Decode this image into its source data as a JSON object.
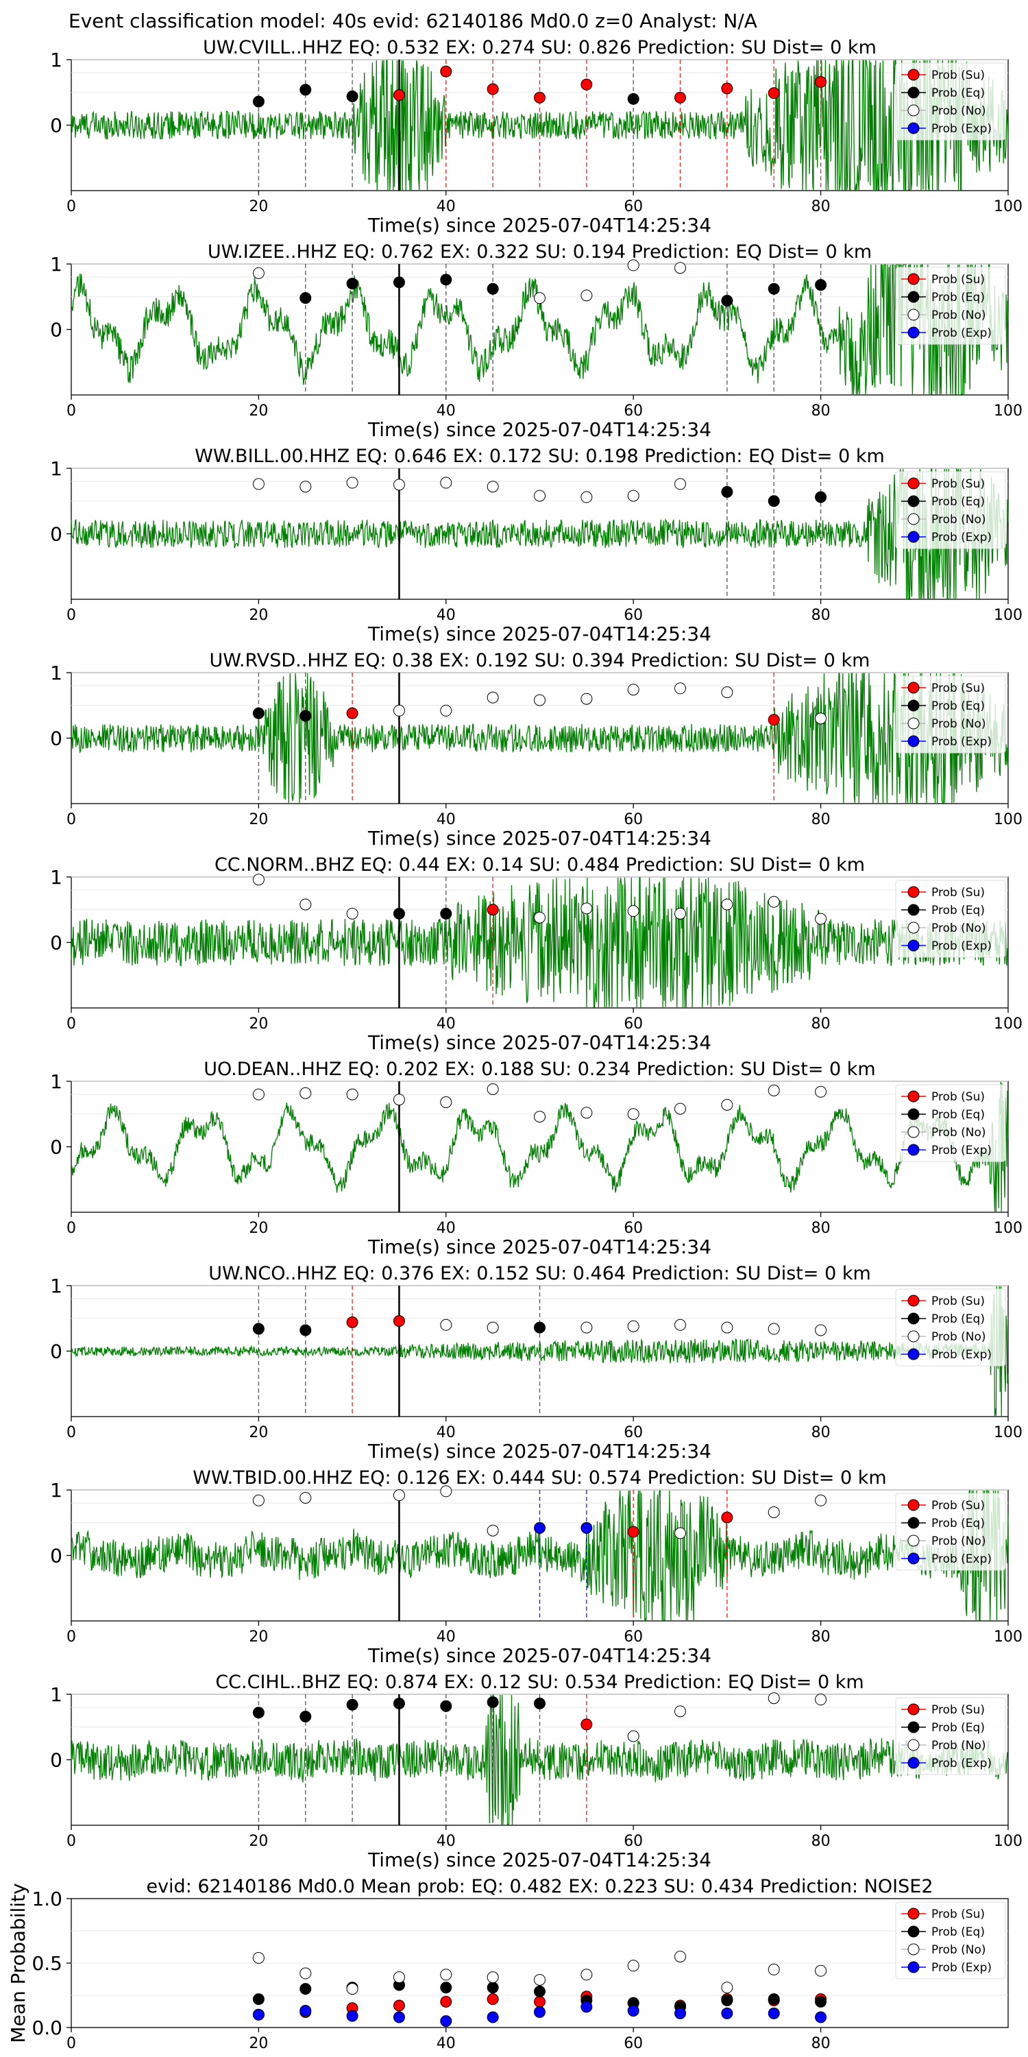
{
  "figure": {
    "title": "Event classification model: 40s evid: 62140186 Md0.0 z=0 Analyst: N/A"
  },
  "legend_labels": [
    "Prob (Su)",
    "Prob (Eq)",
    "Prob (No)",
    "Prob (Exp)"
  ],
  "colors": {
    "su": "#ff0000",
    "eq": "#000000",
    "no": "#ffffff",
    "exp": "#0000ff",
    "trace": "#008000",
    "event_line": "#000000"
  },
  "chart_data": [
    {
      "type": "line",
      "title": "UW.CVILL..HHZ   EQ: 0.532  EX: 0.274  SU: 0.826   Prediction: SU    Dist= 0 km",
      "xlabel": "Time(s) since 2025-07-04T14:25:34",
      "xlim": [
        0,
        100
      ],
      "ylim": [
        -1,
        1
      ],
      "xticks": [
        "0",
        "20",
        "40",
        "60",
        "80",
        "100"
      ],
      "yticks": [
        "1",
        "0"
      ],
      "event_time": 35,
      "noise_level": 0.12,
      "burst": [
        [
          30,
          40,
          0.5
        ],
        [
          72,
          100,
          0.6
        ]
      ],
      "waves": 0,
      "series": [
        {
          "name": "Prob (Su)",
          "x": [
            35,
            40,
            45,
            50,
            55,
            65,
            70,
            75,
            80
          ],
          "y": [
            0.46,
            0.82,
            0.55,
            0.42,
            0.62,
            0.42,
            0.56,
            0.49,
            0.66
          ]
        },
        {
          "name": "Prob (Eq)",
          "x": [
            20,
            25,
            30,
            60
          ],
          "y": [
            0.36,
            0.54,
            0.44,
            0.4
          ]
        },
        {
          "name": "Prob (No)",
          "x": [],
          "y": []
        },
        {
          "name": "Prob (Exp)",
          "x": [],
          "y": []
        }
      ]
    },
    {
      "type": "line",
      "title": "UW.IZEE..HHZ   EQ: 0.762  EX: 0.322  SU: 0.194   Prediction: EQ    Dist= 0 km",
      "xlabel": "Time(s) since 2025-07-04T14:25:34",
      "xlim": [
        0,
        100
      ],
      "ylim": [
        -1,
        1
      ],
      "xticks": [
        "0",
        "20",
        "40",
        "60",
        "80",
        "100"
      ],
      "yticks": [
        "1",
        "0"
      ],
      "event_time": 35,
      "noise_level": 0.12,
      "burst": [
        [
          82,
          100,
          0.6
        ]
      ],
      "waves": 0.5,
      "series": [
        {
          "name": "Prob (Su)",
          "x": [],
          "y": []
        },
        {
          "name": "Prob (Eq)",
          "x": [
            25,
            30,
            35,
            40,
            45,
            70,
            75,
            80
          ],
          "y": [
            0.48,
            0.7,
            0.72,
            0.76,
            0.62,
            0.44,
            0.62,
            0.68
          ]
        },
        {
          "name": "Prob (No)",
          "x": [
            20,
            50,
            55,
            60,
            65
          ],
          "y": [
            0.86,
            0.48,
            0.52,
            0.98,
            0.94
          ]
        },
        {
          "name": "Prob (Exp)",
          "x": [],
          "y": []
        }
      ]
    },
    {
      "type": "line",
      "title": "WW.BILL.00.HHZ   EQ: 0.646  EX: 0.172  SU: 0.198   Prediction: EQ    Dist= 0 km",
      "xlabel": "Time(s) since 2025-07-04T14:25:34",
      "xlim": [
        0,
        100
      ],
      "ylim": [
        -1,
        1
      ],
      "xticks": [
        "0",
        "20",
        "40",
        "60",
        "80",
        "100"
      ],
      "yticks": [
        "1",
        "0"
      ],
      "event_time": 35,
      "noise_level": 0.12,
      "burst": [
        [
          85,
          100,
          0.55
        ]
      ],
      "waves": 0,
      "series": [
        {
          "name": "Prob (Su)",
          "x": [],
          "y": []
        },
        {
          "name": "Prob (Eq)",
          "x": [
            70,
            75,
            80
          ],
          "y": [
            0.64,
            0.5,
            0.56
          ]
        },
        {
          "name": "Prob (No)",
          "x": [
            20,
            25,
            30,
            35,
            40,
            45,
            50,
            55,
            60,
            65
          ],
          "y": [
            0.76,
            0.72,
            0.78,
            0.75,
            0.78,
            0.72,
            0.58,
            0.56,
            0.58,
            0.76
          ]
        },
        {
          "name": "Prob (Exp)",
          "x": [],
          "y": []
        }
      ]
    },
    {
      "type": "line",
      "title": "UW.RVSD..HHZ   EQ: 0.38  EX: 0.192  SU: 0.394   Prediction: SU    Dist= 0 km",
      "xlabel": "Time(s) since 2025-07-04T14:25:34",
      "xlim": [
        0,
        100
      ],
      "ylim": [
        -1,
        1
      ],
      "xticks": [
        "0",
        "20",
        "40",
        "60",
        "80",
        "100"
      ],
      "yticks": [
        "1",
        "0"
      ],
      "event_time": 35,
      "noise_level": 0.12,
      "burst": [
        [
          20,
          28,
          0.4
        ],
        [
          75,
          100,
          0.5
        ]
      ],
      "waves": 0,
      "series": [
        {
          "name": "Prob (Su)",
          "x": [
            30,
            75
          ],
          "y": [
            0.38,
            0.28
          ]
        },
        {
          "name": "Prob (Eq)",
          "x": [
            20,
            25
          ],
          "y": [
            0.38,
            0.34
          ]
        },
        {
          "name": "Prob (No)",
          "x": [
            35,
            40,
            45,
            50,
            55,
            60,
            65,
            70,
            80
          ],
          "y": [
            0.42,
            0.42,
            0.62,
            0.58,
            0.6,
            0.74,
            0.76,
            0.7,
            0.3
          ]
        },
        {
          "name": "Prob (Exp)",
          "x": [],
          "y": []
        }
      ]
    },
    {
      "type": "line",
      "title": "CC.NORM..BHZ   EQ: 0.44  EX: 0.14  SU: 0.484   Prediction: SU    Dist= 0 km",
      "xlabel": "Time(s) since 2025-07-04T14:25:34",
      "xlim": [
        0,
        100
      ],
      "ylim": [
        -1,
        1
      ],
      "xticks": [
        "0",
        "20",
        "40",
        "60",
        "80",
        "100"
      ],
      "yticks": [
        "1",
        "0"
      ],
      "event_time": 35,
      "noise_level": 0.2,
      "burst": [
        [
          40,
          80,
          0.35
        ]
      ],
      "waves": 0,
      "series": [
        {
          "name": "Prob (Su)",
          "x": [
            45
          ],
          "y": [
            0.5
          ]
        },
        {
          "name": "Prob (Eq)",
          "x": [
            35,
            40
          ],
          "y": [
            0.44,
            0.44
          ]
        },
        {
          "name": "Prob (No)",
          "x": [
            20,
            25,
            30,
            50,
            55,
            60,
            65,
            70,
            75,
            80
          ],
          "y": [
            0.96,
            0.58,
            0.44,
            0.38,
            0.52,
            0.48,
            0.44,
            0.58,
            0.62,
            0.36
          ]
        },
        {
          "name": "Prob (Exp)",
          "x": [],
          "y": []
        }
      ]
    },
    {
      "type": "line",
      "title": "UO.DEAN..HHZ   EQ: 0.202  EX: 0.188  SU: 0.234   Prediction: SU    Dist= 0 km",
      "xlabel": "Time(s) since 2025-07-04T14:25:34",
      "xlim": [
        0,
        100
      ],
      "ylim": [
        -1,
        1
      ],
      "xticks": [
        "0",
        "20",
        "40",
        "60",
        "80",
        "100"
      ],
      "yticks": [
        "1",
        "0"
      ],
      "event_time": 35,
      "noise_level": 0.08,
      "burst": [
        [
          98,
          100,
          0.6
        ]
      ],
      "waves": 0.45,
      "series": [
        {
          "name": "Prob (Su)",
          "x": [],
          "y": []
        },
        {
          "name": "Prob (Eq)",
          "x": [],
          "y": []
        },
        {
          "name": "Prob (No)",
          "x": [
            20,
            25,
            30,
            35,
            40,
            45,
            50,
            55,
            60,
            65,
            70,
            75,
            80
          ],
          "y": [
            0.8,
            0.82,
            0.8,
            0.72,
            0.68,
            0.88,
            0.46,
            0.52,
            0.5,
            0.58,
            0.64,
            0.86,
            0.84
          ]
        },
        {
          "name": "Prob (Exp)",
          "x": [],
          "y": []
        }
      ]
    },
    {
      "type": "line",
      "title": "UW.NCO..HHZ   EQ: 0.376  EX: 0.152  SU: 0.464   Prediction: SU    Dist= 0 km",
      "xlabel": "Time(s) since 2025-07-04T14:25:34",
      "xlim": [
        0,
        100
      ],
      "ylim": [
        -1,
        1
      ],
      "xticks": [
        "0",
        "20",
        "40",
        "60",
        "80",
        "100"
      ],
      "yticks": [
        "1",
        "0"
      ],
      "event_time": 35,
      "noise_level": 0.04,
      "burst": [
        [
          35,
          100,
          0.05
        ],
        [
          98,
          100,
          0.6
        ]
      ],
      "waves": 0,
      "series": [
        {
          "name": "Prob (Su)",
          "x": [
            30,
            35
          ],
          "y": [
            0.44,
            0.46
          ]
        },
        {
          "name": "Prob (Eq)",
          "x": [
            20,
            25,
            50
          ],
          "y": [
            0.34,
            0.32,
            0.36
          ]
        },
        {
          "name": "Prob (No)",
          "x": [
            40,
            45,
            55,
            60,
            65,
            70,
            75,
            80
          ],
          "y": [
            0.4,
            0.36,
            0.36,
            0.38,
            0.4,
            0.36,
            0.34,
            0.32
          ]
        },
        {
          "name": "Prob (Exp)",
          "x": [],
          "y": []
        }
      ]
    },
    {
      "type": "line",
      "title": "WW.TBID.00.HHZ   EQ: 0.126  EX: 0.444  SU: 0.574   Prediction: SU    Dist= 0 km",
      "xlabel": "Time(s) since 2025-07-04T14:25:34",
      "xlim": [
        0,
        100
      ],
      "ylim": [
        -1,
        1
      ],
      "xticks": [
        "0",
        "20",
        "40",
        "60",
        "80",
        "100"
      ],
      "yticks": [
        "1",
        "0"
      ],
      "event_time": 35,
      "noise_level": 0.16,
      "burst": [
        [
          55,
          70,
          0.4
        ],
        [
          95,
          100,
          0.7
        ]
      ],
      "waves": 0.1,
      "series": [
        {
          "name": "Prob (Su)",
          "x": [
            60,
            70
          ],
          "y": [
            0.36,
            0.58
          ]
        },
        {
          "name": "Prob (Eq)",
          "x": [],
          "y": []
        },
        {
          "name": "Prob (No)",
          "x": [
            20,
            25,
            35,
            40,
            45,
            65,
            75,
            80
          ],
          "y": [
            0.84,
            0.88,
            0.92,
            0.98,
            0.38,
            0.34,
            0.66,
            0.84
          ]
        },
        {
          "name": "Prob (Exp)",
          "x": [
            50,
            55
          ],
          "y": [
            0.42,
            0.42
          ]
        }
      ]
    },
    {
      "type": "line",
      "title": "CC.CIHL..BHZ   EQ: 0.874  EX: 0.12  SU: 0.534   Prediction: EQ    Dist= 0 km",
      "xlabel": "Time(s) since 2025-07-04T14:25:34",
      "xlim": [
        0,
        100
      ],
      "ylim": [
        -1,
        1
      ],
      "xticks": [
        "0",
        "20",
        "40",
        "60",
        "80",
        "100"
      ],
      "yticks": [
        "1",
        "0"
      ],
      "event_time": 35,
      "noise_level": 0.16,
      "burst": [
        [
          44,
          48,
          0.6
        ]
      ],
      "waves": 0.05,
      "series": [
        {
          "name": "Prob (Su)",
          "x": [
            55
          ],
          "y": [
            0.54
          ]
        },
        {
          "name": "Prob (Eq)",
          "x": [
            20,
            25,
            30,
            35,
            40,
            45,
            50
          ],
          "y": [
            0.72,
            0.66,
            0.84,
            0.86,
            0.82,
            0.88,
            0.86
          ]
        },
        {
          "name": "Prob (No)",
          "x": [
            60,
            65,
            75,
            80
          ],
          "y": [
            0.36,
            0.74,
            0.94,
            0.92
          ]
        },
        {
          "name": "Prob (Exp)",
          "x": [],
          "y": []
        }
      ]
    },
    {
      "type": "scatter",
      "title": "evid: 62140186  Md0.0   Mean prob:    EQ: 0.482  EX: 0.223  SU: 0.434    Prediction: NOISE2",
      "ylabel": "Mean Probability",
      "xlim": [
        0,
        100
      ],
      "ylim": [
        0,
        1
      ],
      "xticks": [
        "0",
        "20",
        "40",
        "60",
        "80"
      ],
      "yticks": [
        "1.0",
        "0.5",
        "0.0"
      ],
      "series": [
        {
          "name": "Prob (Su)",
          "x": [
            20,
            25,
            30,
            35,
            40,
            45,
            50,
            55,
            60,
            65,
            70,
            75,
            80
          ],
          "y": [
            0.1,
            0.12,
            0.15,
            0.17,
            0.2,
            0.22,
            0.2,
            0.24,
            0.19,
            0.17,
            0.22,
            0.21,
            0.22
          ]
        },
        {
          "name": "Prob (Eq)",
          "x": [
            20,
            25,
            30,
            35,
            40,
            45,
            50,
            55,
            60,
            65,
            70,
            75,
            80
          ],
          "y": [
            0.22,
            0.3,
            0.31,
            0.33,
            0.31,
            0.31,
            0.28,
            0.21,
            0.19,
            0.16,
            0.21,
            0.22,
            0.2
          ]
        },
        {
          "name": "Prob (No)",
          "x": [
            20,
            25,
            30,
            35,
            40,
            45,
            50,
            55,
            60,
            65,
            70,
            75,
            80
          ],
          "y": [
            0.54,
            0.42,
            0.3,
            0.39,
            0.41,
            0.39,
            0.37,
            0.41,
            0.48,
            0.55,
            0.31,
            0.45,
            0.44
          ]
        },
        {
          "name": "Prob (Exp)",
          "x": [
            20,
            25,
            30,
            35,
            40,
            45,
            50,
            55,
            60,
            65,
            70,
            75,
            80
          ],
          "y": [
            0.1,
            0.13,
            0.09,
            0.08,
            0.05,
            0.08,
            0.12,
            0.16,
            0.13,
            0.11,
            0.11,
            0.11,
            0.08
          ]
        }
      ]
    }
  ]
}
